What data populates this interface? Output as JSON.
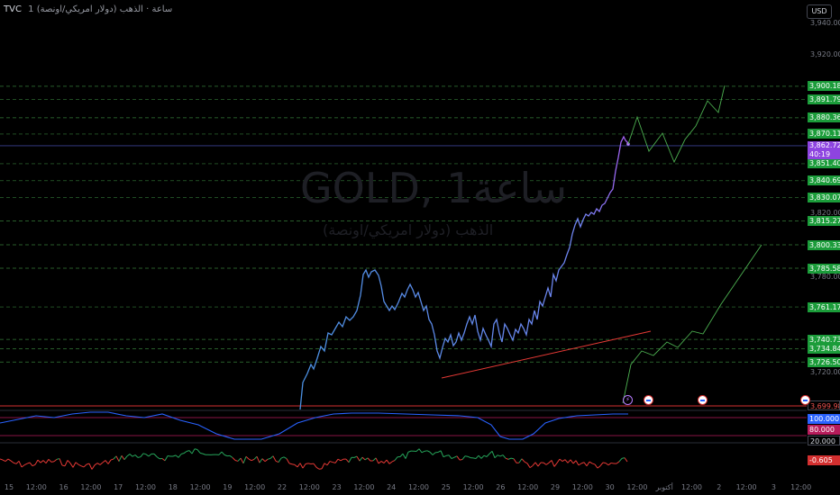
{
  "symbol": {
    "ticker": "TVC",
    "title": "ساعة · الذهب (دولار امريكي/اونصة)",
    "timeframe": "1"
  },
  "currency_button": "USD",
  "watermark": {
    "title": "GOLD, 1ساعة",
    "subtitle": "الذهب (دولار امريكي/اونصة)"
  },
  "price_scale": [
    {
      "label": "3,940.000",
      "value": 3940
    },
    {
      "label": "3,920.000",
      "value": 3920
    },
    {
      "label": "3,820.000",
      "value": 3820
    },
    {
      "label": "3,780.000",
      "value": 3780
    },
    {
      "label": "3,720.000",
      "value": 3720
    }
  ],
  "level_tags": [
    {
      "label": "3,900.184",
      "value": 3900.184,
      "color": "green"
    },
    {
      "label": "3,891.797",
      "value": 3891.797,
      "color": "green"
    },
    {
      "label": "3,880.361",
      "value": 3880.361,
      "color": "green"
    },
    {
      "label": "3,870.114",
      "value": 3870.114,
      "color": "green"
    },
    {
      "label": "3,851.405",
      "value": 3851.405,
      "color": "green"
    },
    {
      "label": "3,840.694",
      "value": 3840.694,
      "color": "green"
    },
    {
      "label": "3,830.075",
      "value": 3830.075,
      "color": "green"
    },
    {
      "label": "3,815.279",
      "value": 3815.279,
      "color": "green"
    },
    {
      "label": "3,800.330",
      "value": 3800.33,
      "color": "green"
    },
    {
      "label": "3,785.584",
      "value": 3785.584,
      "color": "green"
    },
    {
      "label": "3,761.175",
      "value": 3761.175,
      "color": "green"
    },
    {
      "label": "3,740.731",
      "value": 3740.731,
      "color": "green"
    },
    {
      "label": "3,734.849",
      "value": 3734.849,
      "color": "green"
    },
    {
      "label": "3,726.501",
      "value": 3726.501,
      "color": "green"
    }
  ],
  "current_price": {
    "label": "3,862.720",
    "value": 3862.72,
    "countdown": "40:19"
  },
  "red_level": {
    "label": "3,699.984",
    "value": 3699.984
  },
  "oscillator_1": {
    "tags": [
      "100.000",
      "80.000",
      "20.000"
    ]
  },
  "oscillator_2": {
    "tag": "-0.605"
  },
  "time_axis": [
    "15",
    "12:00",
    "16",
    "12:00",
    "17",
    "12:00",
    "18",
    "12:00",
    "19",
    "12:00",
    "22",
    "12:00",
    "23",
    "12:00",
    "24",
    "12:00",
    "25",
    "12:00",
    "26",
    "12:00",
    "29",
    "12:00",
    "30",
    "12:00",
    "أكتوبر",
    "12:00",
    "2",
    "12:00",
    "3",
    "12:00"
  ],
  "colors": {
    "background": "#000000",
    "price_line_start": "#4a8fe0",
    "price_line_end": "#a65df0",
    "projection": "#4caf50",
    "level_line": "#4caf50",
    "trend_line": "#e53935",
    "oscillator_line": "#2962ff",
    "momentum_up": "#26a65b",
    "momentum_down": "#e53935"
  },
  "chart_data": {
    "type": "line",
    "title": "GOLD, 1ساعة",
    "ylim": [
      3690,
      3950
    ],
    "series": [
      {
        "values": [
          3690,
          3722,
          3735,
          3745,
          3762,
          3775,
          3770,
          3762,
          3758,
          3746,
          3756,
          3742,
          3728,
          3738,
          3745,
          3738,
          3742,
          3748,
          3745,
          3760,
          3772,
          3795,
          3815,
          3830,
          3840,
          3850,
          3868,
          3862
        ]
      },
      {
        "values": [
          3860,
          3878,
          3858,
          3872,
          3852,
          3880,
          3866,
          3898,
          3891
        ]
      },
      {
        "values": [
          3702,
          3727,
          3740,
          3735,
          3748,
          3742,
          3762,
          3774,
          3771,
          3800
        ]
      }
    ]
  }
}
